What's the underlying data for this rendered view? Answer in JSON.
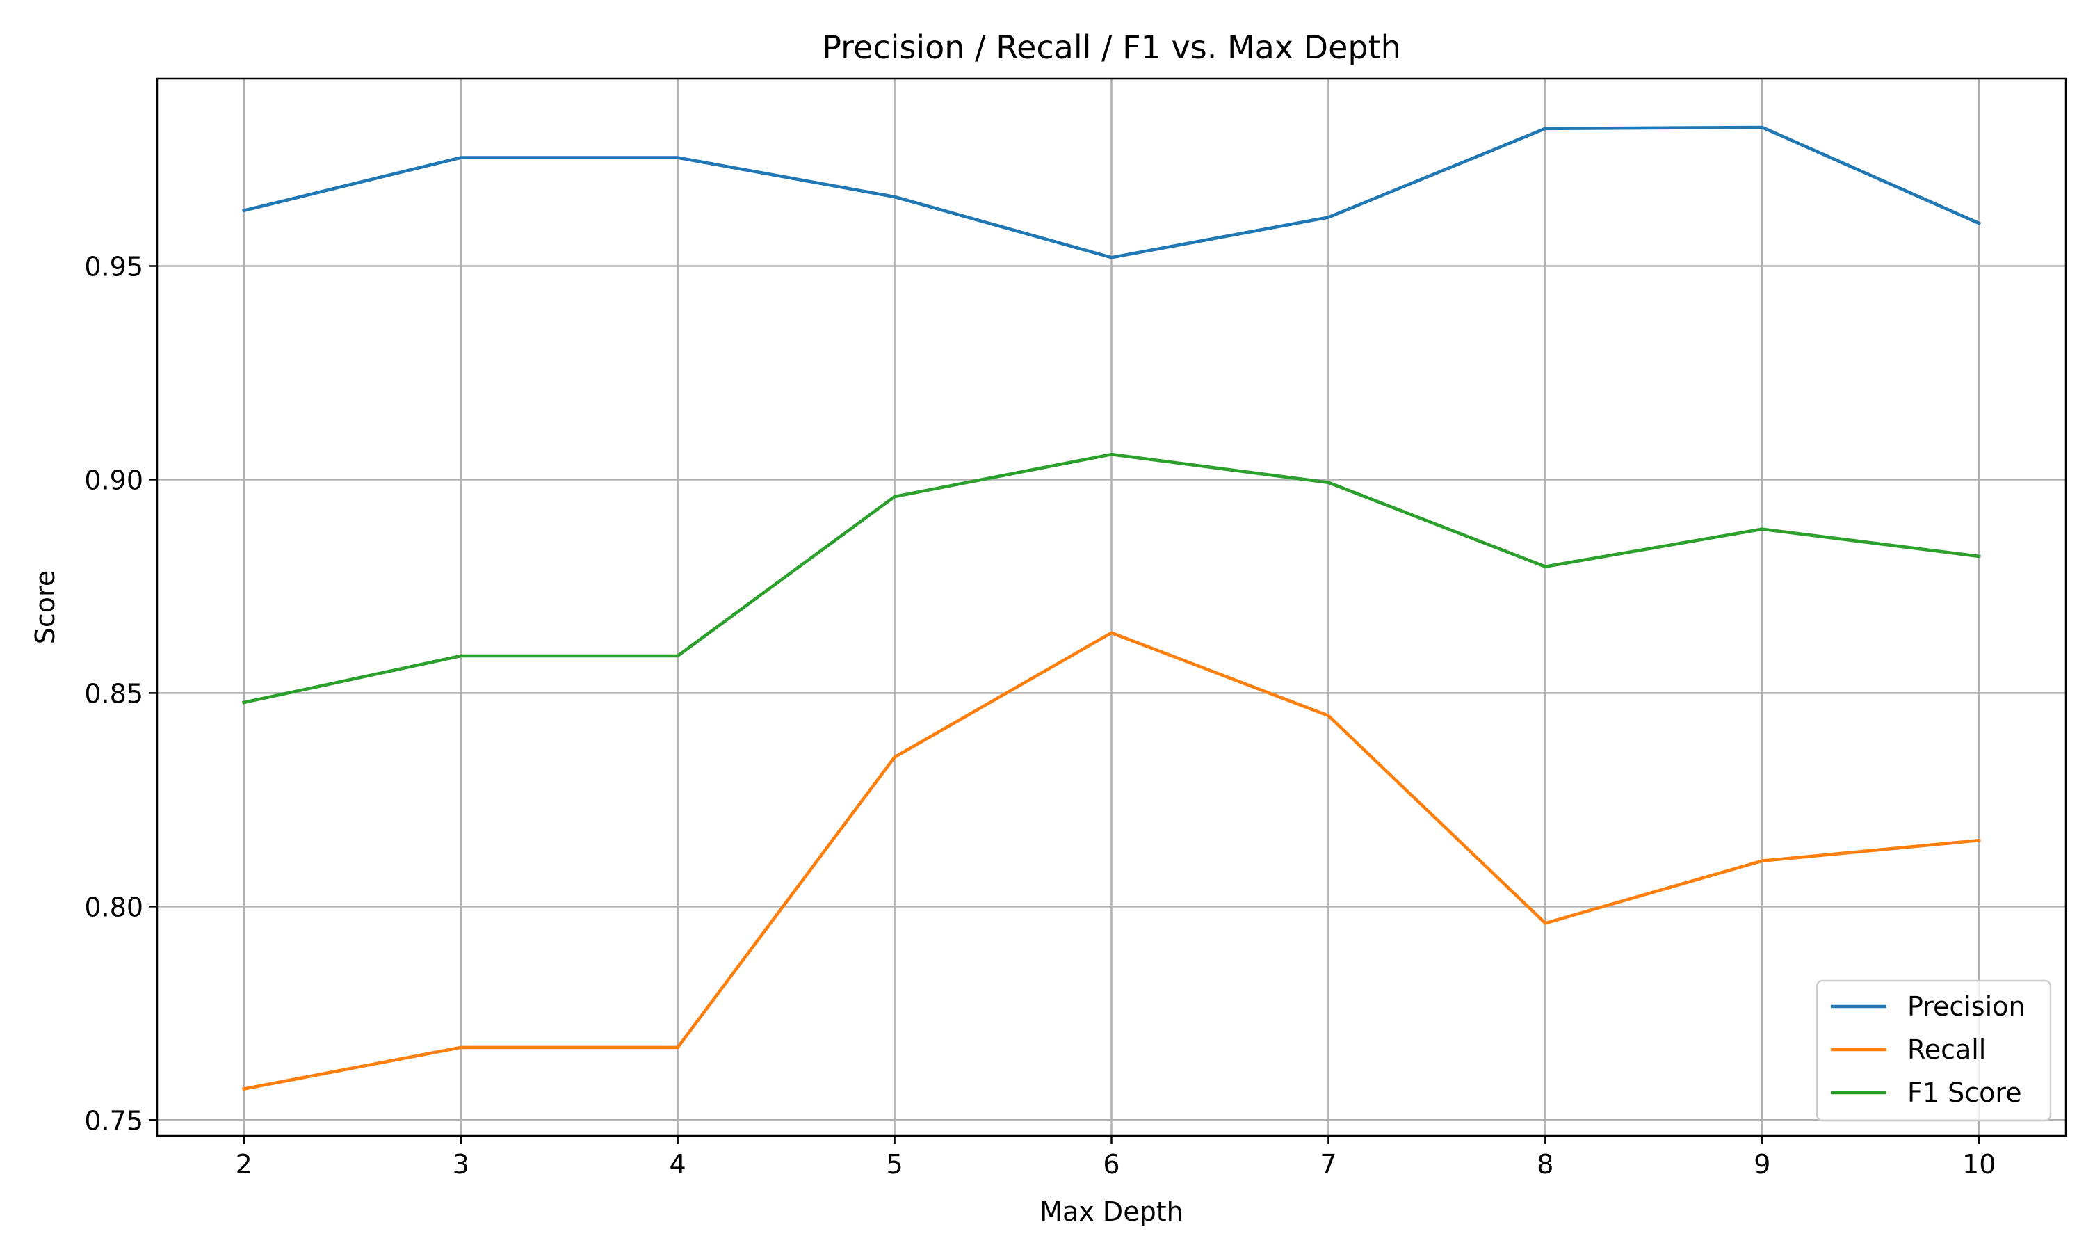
{
  "chart_data": {
    "type": "line",
    "title": "Precision / Recall / F1 vs. Max Depth",
    "xlabel": "Max Depth",
    "ylabel": "Score",
    "x": [
      2,
      3,
      4,
      5,
      6,
      7,
      8,
      9,
      10
    ],
    "xlim": [
      1.6,
      10.4
    ],
    "ylim": [
      0.7463,
      0.9939
    ],
    "xticks": [
      2,
      3,
      4,
      5,
      6,
      7,
      8,
      9,
      10
    ],
    "yticks": [
      0.75,
      0.8,
      0.85,
      0.9,
      0.95
    ],
    "ytick_labels": [
      "0.75",
      "0.80",
      "0.85",
      "0.90",
      "0.95"
    ],
    "grid": true,
    "legend_position": "lower-right",
    "series": [
      {
        "name": "Precision",
        "color": "#1f77b4",
        "values": [
          0.963,
          0.9754,
          0.9754,
          0.9662,
          0.952,
          0.9614,
          0.9822,
          0.9825,
          0.96
        ]
      },
      {
        "name": "Recall",
        "color": "#ff7f0e",
        "values": [
          0.7573,
          0.767,
          0.767,
          0.835,
          0.8641,
          0.8447,
          0.7961,
          0.8107,
          0.8155
        ]
      },
      {
        "name": "F1 Score",
        "color": "#2ca02c",
        "values": [
          0.8478,
          0.8587,
          0.8587,
          0.896,
          0.9059,
          0.8993,
          0.8796,
          0.8884,
          0.882
        ]
      }
    ]
  }
}
